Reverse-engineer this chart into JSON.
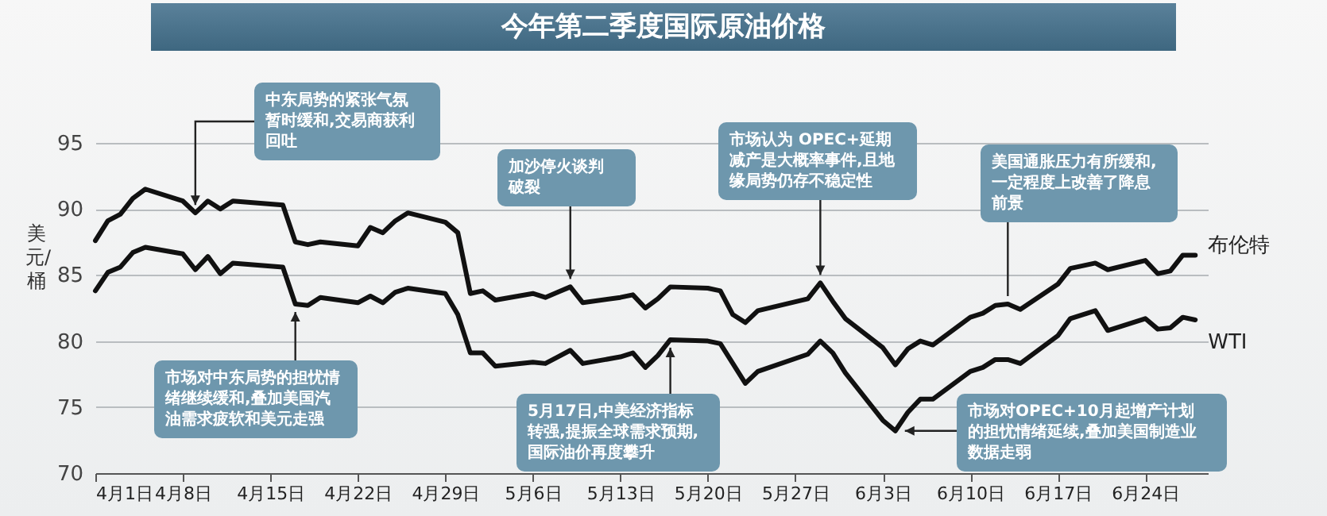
{
  "chart_data": {
    "type": "line",
    "title": "今年第二季度国际原油价格",
    "ylabel": "美元/桶",
    "x": [
      "--04-01",
      "--04-02",
      "--04-03",
      "--04-04",
      "--04-05",
      "--04-08",
      "--04-09",
      "--04-10",
      "--04-11",
      "--04-12",
      "--04-16",
      "--04-17",
      "--04-18",
      "--04-19",
      "--04-22",
      "--04-23",
      "--04-24",
      "--04-25",
      "--04-26",
      "--04-29",
      "--04-30",
      "--05-01",
      "--05-02",
      "--05-03",
      "--05-06",
      "--05-07",
      "--05-08",
      "--05-09",
      "--05-10",
      "--05-13",
      "--05-14",
      "--05-15",
      "--05-16",
      "--05-17",
      "--05-20",
      "--05-21",
      "--05-22",
      "--05-23",
      "--05-24",
      "--05-28",
      "--05-29",
      "--05-30",
      "--05-31",
      "--06-03",
      "--06-04",
      "--06-05",
      "--06-06",
      "--06-07",
      "--06-10",
      "--06-11",
      "--06-12",
      "--06-13",
      "--06-14",
      "--06-17",
      "--06-18",
      "--06-20",
      "--06-21",
      "--06-24",
      "--06-25",
      "--06-26",
      "--06-27",
      "--06-28"
    ],
    "series": [
      {
        "name": "布伦特",
        "color": "#111111",
        "values": [
          87.6,
          89.1,
          89.6,
          90.8,
          91.5,
          90.6,
          89.7,
          90.6,
          90.0,
          90.6,
          90.3,
          87.5,
          87.3,
          87.5,
          87.2,
          88.6,
          88.2,
          89.1,
          89.7,
          89.0,
          88.2,
          83.6,
          83.8,
          83.1,
          83.6,
          83.3,
          83.7,
          84.1,
          82.9,
          83.3,
          83.5,
          82.5,
          83.2,
          84.1,
          84.0,
          83.8,
          82.0,
          81.4,
          82.3,
          83.2,
          84.4,
          83.0,
          81.7,
          79.5,
          78.2,
          79.4,
          80.0,
          79.7,
          81.8,
          82.1,
          82.7,
          82.8,
          82.4,
          84.3,
          85.5,
          85.9,
          85.4,
          86.1,
          85.1,
          85.3,
          86.5,
          86.5
        ]
      },
      {
        "name": "WTI",
        "color": "#111111",
        "values": [
          83.8,
          85.2,
          85.6,
          86.7,
          87.1,
          86.6,
          85.4,
          86.4,
          85.1,
          85.9,
          85.6,
          82.8,
          82.7,
          83.3,
          82.9,
          83.4,
          82.9,
          83.7,
          84.0,
          83.6,
          82.0,
          79.1,
          79.1,
          78.1,
          78.4,
          78.3,
          78.8,
          79.3,
          78.3,
          78.8,
          79.1,
          78.0,
          78.9,
          80.1,
          80.0,
          79.8,
          78.3,
          76.8,
          77.7,
          79.0,
          80.0,
          79.1,
          77.6,
          74.0,
          73.2,
          74.6,
          75.6,
          75.6,
          77.7,
          78.0,
          78.6,
          78.6,
          78.3,
          80.4,
          81.7,
          82.3,
          80.8,
          81.7,
          80.9,
          81.0,
          81.8,
          81.6
        ]
      }
    ],
    "xlim": [
      "--04-01",
      "--06-29"
    ],
    "ylim": [
      70,
      95
    ],
    "yticks": [
      70,
      75,
      80,
      85,
      90,
      95
    ],
    "xticks": [
      {
        "value": "--04-01",
        "label": "4月1日"
      },
      {
        "value": "--04-08",
        "label": "4月8日"
      },
      {
        "value": "--04-15",
        "label": "4月15日"
      },
      {
        "value": "--04-22",
        "label": "4月22日"
      },
      {
        "value": "--04-29",
        "label": "4月29日"
      },
      {
        "value": "--05-06",
        "label": "5月6日"
      },
      {
        "value": "--05-13",
        "label": "5月13日"
      },
      {
        "value": "--05-20",
        "label": "5月20日"
      },
      {
        "value": "--05-27",
        "label": "5月27日"
      },
      {
        "value": "--06-03",
        "label": "6月3日"
      },
      {
        "value": "--06-10",
        "label": "6月10日"
      },
      {
        "value": "--06-17",
        "label": "6月17日"
      },
      {
        "value": "--06-24",
        "label": "6月24日"
      }
    ],
    "grid": "y",
    "annotations": [
      {
        "text": "中东局势的紧张气氛暂时缓和,交易商获利回吐",
        "x": "--04-09",
        "y": 89.7
      },
      {
        "text": "市场对中东局势的担忧情绪继续缓和,叠加美国汽油需求疲软和美元走强",
        "x": "--04-17",
        "y": 82.8
      },
      {
        "text": "加沙停火谈判破裂",
        "x": "--05-09",
        "y": 84.1
      },
      {
        "text": "5月17日,中美经济指标转强,提振全球需求预期,国际油价再度攀升",
        "x": "--05-17",
        "y": 80.1
      },
      {
        "text": "市场认为 OPEC+延期减产是大概率事件,且地缘局势仍存不稳定性",
        "x": "--05-29",
        "y": 84.4
      },
      {
        "text": "美国通胀压力有所缓和,一定程度上改善了降息前景",
        "x": "--06-13",
        "y": 82.8
      },
      {
        "text": "市场对OPEC+10月起增产计划的担忧情绪延续,叠加美国制造业数据走弱",
        "x": "--06-04",
        "y": 73.2
      }
    ]
  }
}
